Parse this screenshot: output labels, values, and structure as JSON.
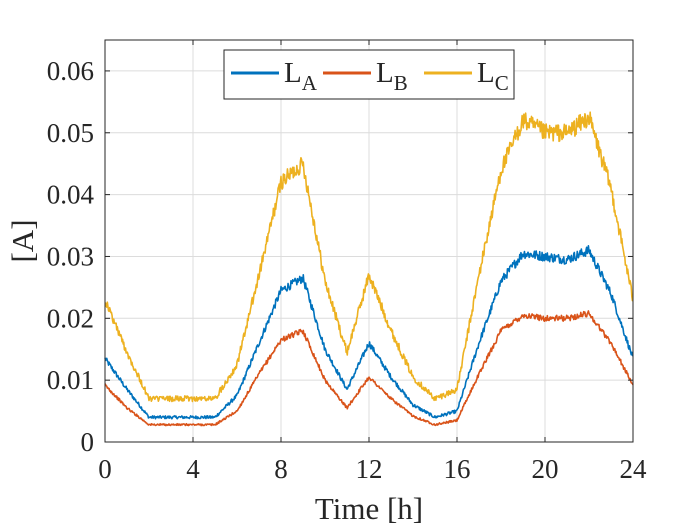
{
  "chart_data": {
    "type": "line",
    "title": "",
    "xlabel": "Time [h]",
    "ylabel": "[A]",
    "xlim": [
      0,
      24
    ],
    "ylim": [
      0,
      0.065
    ],
    "xticks": [
      0,
      4,
      8,
      12,
      16,
      20,
      24
    ],
    "yticks": [
      0,
      0.01,
      0.02,
      0.03,
      0.04,
      0.05,
      0.06
    ],
    "xtick_labels": [
      "0",
      "4",
      "8",
      "12",
      "16",
      "20",
      "24"
    ],
    "ytick_labels": [
      "0",
      "0.01",
      "0.02",
      "0.03",
      "0.04",
      "0.05",
      "0.06"
    ],
    "grid": true,
    "legend": {
      "placement": "top-center",
      "orientation": "horizontal"
    },
    "x": [
      0,
      1,
      2,
      3,
      4,
      5,
      6,
      7,
      8,
      9,
      10,
      11,
      12,
      13,
      14,
      15,
      16,
      17,
      18,
      19,
      20,
      21,
      22,
      23,
      24
    ],
    "series": [
      {
        "name": "L_A",
        "label_main": "L",
        "label_sub": "A",
        "color": "#0072BD",
        "noise": 0.0008,
        "values": [
          0.0135,
          0.0085,
          0.004,
          0.004,
          0.004,
          0.004,
          0.0075,
          0.016,
          0.0245,
          0.0265,
          0.015,
          0.0085,
          0.016,
          0.0105,
          0.006,
          0.004,
          0.005,
          0.016,
          0.026,
          0.0305,
          0.03,
          0.0295,
          0.031,
          0.024,
          0.0135
        ]
      },
      {
        "name": "L_B",
        "label_main": "L",
        "label_sub": "B",
        "color": "#D95319",
        "noise": 0.0005,
        "values": [
          0.0092,
          0.0055,
          0.0028,
          0.0028,
          0.0028,
          0.0028,
          0.005,
          0.011,
          0.0165,
          0.018,
          0.01,
          0.0055,
          0.0105,
          0.007,
          0.0042,
          0.0028,
          0.0035,
          0.011,
          0.018,
          0.0205,
          0.02,
          0.02,
          0.0208,
          0.016,
          0.0092
        ]
      },
      {
        "name": "L_C",
        "label_main": "L",
        "label_sub": "C",
        "color": "#EDB120",
        "noise": 0.0015,
        "values": [
          0.023,
          0.0145,
          0.007,
          0.007,
          0.007,
          0.007,
          0.0125,
          0.027,
          0.042,
          0.045,
          0.026,
          0.0145,
          0.027,
          0.018,
          0.0105,
          0.007,
          0.0085,
          0.027,
          0.044,
          0.052,
          0.05,
          0.05,
          0.0525,
          0.041,
          0.023
        ]
      }
    ]
  }
}
